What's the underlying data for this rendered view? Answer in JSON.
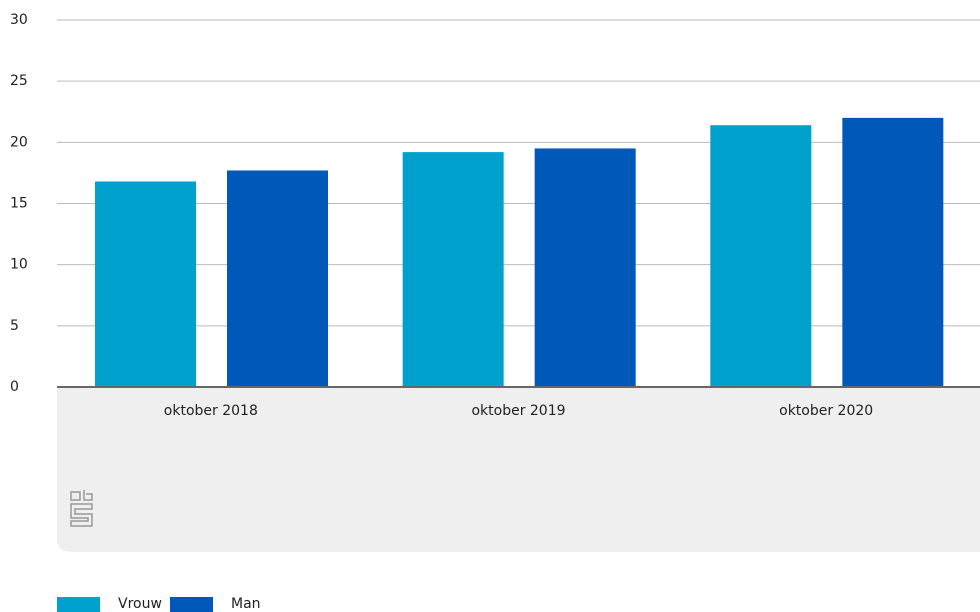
{
  "chart_data": {
    "type": "bar",
    "categories": [
      "oktober 2018",
      "oktober 2019",
      "oktober 2020"
    ],
    "series": [
      {
        "name": "Vrouw",
        "color": "#00a1cd",
        "values": [
          16.8,
          19.2,
          21.4
        ]
      },
      {
        "name": "Man",
        "color": "#0058b8",
        "values": [
          17.7,
          19.5,
          22.0
        ]
      }
    ],
    "ylim": [
      0,
      30
    ],
    "yticks": [
      0,
      5,
      10,
      15,
      20,
      25,
      30
    ],
    "grid": true
  }
}
